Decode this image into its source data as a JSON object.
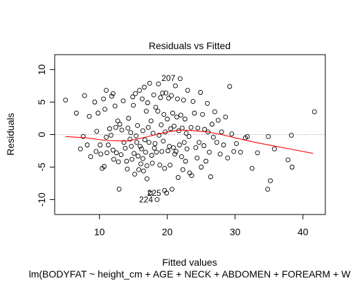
{
  "chart_data": {
    "type": "scatter",
    "title": "Residuals vs Fitted",
    "xlabel": "Fitted values",
    "ylabel": "Residuals",
    "subtitle": "lm(BODYFAT ~ height_cm + AGE + NECK + ABDOMEN + FOREARM + W",
    "xlim": [
      3.4,
      43.3
    ],
    "ylim": [
      -12.3,
      12.3
    ],
    "x_ticks": [
      "10",
      "20",
      "30",
      "40"
    ],
    "y_ticks": [
      "-10",
      "-5",
      "0",
      "5",
      "10"
    ],
    "reference_line": {
      "y": 0,
      "style": "dotted",
      "color": "#bbbbbb"
    },
    "marker": {
      "shape": "open-circle",
      "color": "#000000"
    },
    "smooth_color": "#ff0000",
    "smooth": {
      "x": [
        5,
        8,
        11,
        14,
        16,
        18,
        20,
        22,
        24,
        26,
        28,
        30,
        33,
        36,
        39,
        41.5
      ],
      "y": [
        -0.3,
        -0.5,
        -0.9,
        -1.0,
        -0.6,
        -0.1,
        0.4,
        0.7,
        0.6,
        0.4,
        0.0,
        -0.5,
        -1.2,
        -1.8,
        -2.4,
        -2.9
      ]
    },
    "labeled_points": [
      {
        "label": "207",
        "x": 21.8,
        "y": 8.7
      },
      {
        "label": "225",
        "x": 19.7,
        "y": -9.0
      },
      {
        "label": "224",
        "x": 18.5,
        "y": -10.0
      }
    ],
    "points": [
      [
        5.0,
        5.3
      ],
      [
        6.6,
        3.3
      ],
      [
        7.2,
        -2.2
      ],
      [
        7.6,
        -0.3
      ],
      [
        7.8,
        6.0
      ],
      [
        8.2,
        -1.6
      ],
      [
        8.5,
        2.8
      ],
      [
        8.7,
        -3.4
      ],
      [
        9.3,
        5.0
      ],
      [
        9.5,
        -2.6
      ],
      [
        9.6,
        0.5
      ],
      [
        9.8,
        3.3
      ],
      [
        10.1,
        -1.6
      ],
      [
        10.2,
        -3.0
      ],
      [
        10.4,
        -5.2
      ],
      [
        10.6,
        5.5
      ],
      [
        10.7,
        -4.9
      ],
      [
        10.8,
        3.9
      ],
      [
        11.0,
        6.8
      ],
      [
        11.0,
        -0.4
      ],
      [
        11.1,
        -2.8
      ],
      [
        11.3,
        -1.6
      ],
      [
        11.5,
        0.9
      ],
      [
        11.7,
        -0.1
      ],
      [
        11.8,
        5.9
      ],
      [
        12.0,
        6.3
      ],
      [
        12.0,
        -2.4
      ],
      [
        12.1,
        -3.8
      ],
      [
        12.3,
        4.4
      ],
      [
        12.4,
        1.1
      ],
      [
        12.5,
        -2.8
      ],
      [
        12.7,
        2.1
      ],
      [
        12.8,
        -4.2
      ],
      [
        12.9,
        -8.4
      ],
      [
        13.0,
        1.6
      ],
      [
        13.2,
        -3.1
      ],
      [
        13.3,
        0.7
      ],
      [
        13.5,
        5.2
      ],
      [
        13.6,
        -1.2
      ],
      [
        13.8,
        -2.1
      ],
      [
        14.0,
        -4.1
      ],
      [
        14.1,
        -5.3
      ],
      [
        14.2,
        1.0
      ],
      [
        14.3,
        2.5
      ],
      [
        14.5,
        -0.7
      ],
      [
        14.6,
        0.3
      ],
      [
        14.7,
        -1.8
      ],
      [
        14.8,
        -3.8
      ],
      [
        14.9,
        5.8
      ],
      [
        15.0,
        4.5
      ],
      [
        15.1,
        -2.9
      ],
      [
        15.2,
        -6.1
      ],
      [
        15.3,
        6.3
      ],
      [
        15.4,
        -0.2
      ],
      [
        15.5,
        -1.2
      ],
      [
        15.6,
        1.4
      ],
      [
        15.7,
        -3.3
      ],
      [
        15.8,
        -5.4
      ],
      [
        15.9,
        6.8
      ],
      [
        16.0,
        -1.8
      ],
      [
        16.1,
        -4.5
      ],
      [
        16.2,
        -2.2
      ],
      [
        16.3,
        5.5
      ],
      [
        16.4,
        0.6
      ],
      [
        16.4,
        -3.7
      ],
      [
        16.5,
        -5.6
      ],
      [
        16.6,
        7.3
      ],
      [
        16.7,
        -0.8
      ],
      [
        16.8,
        -2.7
      ],
      [
        16.9,
        3.6
      ],
      [
        17.0,
        -4.8
      ],
      [
        17.0,
        -6.8
      ],
      [
        17.1,
        4.9
      ],
      [
        17.2,
        1.1
      ],
      [
        17.3,
        -1.2
      ],
      [
        17.4,
        7.9
      ],
      [
        17.5,
        -9.0
      ],
      [
        17.6,
        2.1
      ],
      [
        17.7,
        -3.2
      ],
      [
        17.8,
        -4.4
      ],
      [
        17.9,
        0.2
      ],
      [
        18.0,
        6.1
      ],
      [
        18.1,
        -2.1
      ],
      [
        18.2,
        -1.4
      ],
      [
        18.3,
        4.2
      ],
      [
        18.4,
        -2.7
      ],
      [
        18.5,
        -10.0
      ],
      [
        18.6,
        3.6
      ],
      [
        18.7,
        7.8
      ],
      [
        18.8,
        -0.1
      ],
      [
        18.9,
        -4.7
      ],
      [
        19.0,
        5.7
      ],
      [
        19.1,
        1.5
      ],
      [
        19.2,
        -2.6
      ],
      [
        19.3,
        6.4
      ],
      [
        19.4,
        -1.0
      ],
      [
        19.5,
        3.1
      ],
      [
        19.6,
        -5.2
      ],
      [
        19.6,
        -8.6
      ],
      [
        19.7,
        0.4
      ],
      [
        19.8,
        6.4
      ],
      [
        19.9,
        -9.0
      ],
      [
        20.0,
        2.4
      ],
      [
        20.1,
        -2.5
      ],
      [
        20.2,
        5.6
      ],
      [
        20.3,
        -1.8
      ],
      [
        20.4,
        -4.7
      ],
      [
        20.5,
        0.9
      ],
      [
        20.6,
        6.0
      ],
      [
        20.7,
        -8.4
      ],
      [
        20.8,
        3.3
      ],
      [
        20.9,
        -2.0
      ],
      [
        21.0,
        1.3
      ],
      [
        21.1,
        -3.0
      ],
      [
        21.2,
        7.5
      ],
      [
        21.3,
        -2.6
      ],
      [
        21.4,
        2.7
      ],
      [
        21.5,
        5.5
      ],
      [
        21.6,
        -6.6
      ],
      [
        21.7,
        0.6
      ],
      [
        21.8,
        -1.6
      ],
      [
        21.9,
        8.6
      ],
      [
        22.0,
        3.0
      ],
      [
        22.1,
        -3.4
      ],
      [
        22.2,
        1.0
      ],
      [
        22.3,
        -5.4
      ],
      [
        22.4,
        5.3
      ],
      [
        22.5,
        -1.2
      ],
      [
        22.6,
        2.4
      ],
      [
        22.7,
        -4.1
      ],
      [
        22.8,
        0.2
      ],
      [
        22.9,
        -2.2
      ],
      [
        23.0,
        6.8
      ],
      [
        23.2,
        -0.3
      ],
      [
        23.3,
        -5.9
      ],
      [
        23.5,
        1.1
      ],
      [
        23.6,
        -6.3
      ],
      [
        23.8,
        5.1
      ],
      [
        24.0,
        3.3
      ],
      [
        24.2,
        -2.0
      ],
      [
        24.4,
        -3.6
      ],
      [
        24.5,
        1.0
      ],
      [
        24.7,
        -1.2
      ],
      [
        24.9,
        6.5
      ],
      [
        25.0,
        -5.0
      ],
      [
        25.2,
        3.1
      ],
      [
        25.4,
        -1.7
      ],
      [
        25.5,
        0.8
      ],
      [
        25.7,
        -4.1
      ],
      [
        25.9,
        4.8
      ],
      [
        26.0,
        0.4
      ],
      [
        26.2,
        -2.7
      ],
      [
        26.4,
        -6.5
      ],
      [
        26.6,
        1.6
      ],
      [
        26.8,
        -0.4
      ],
      [
        27.0,
        3.5
      ],
      [
        27.3,
        -1.2
      ],
      [
        27.5,
        2.2
      ],
      [
        27.8,
        -3.0
      ],
      [
        28.0,
        0.4
      ],
      [
        28.3,
        -1.6
      ],
      [
        28.6,
        2.7
      ],
      [
        28.9,
        -3.6
      ],
      [
        29.2,
        7.4
      ],
      [
        29.5,
        0.1
      ],
      [
        29.8,
        -2.6
      ],
      [
        30.2,
        -1.4
      ],
      [
        30.8,
        -2.7
      ],
      [
        31.5,
        -0.5
      ],
      [
        31.8,
        -0.3
      ],
      [
        32.5,
        -5.2
      ],
      [
        33.3,
        -2.8
      ],
      [
        34.8,
        -8.4
      ],
      [
        35.2,
        -7.1
      ],
      [
        35.8,
        -2.2
      ],
      [
        34.9,
        -0.3
      ],
      [
        37.8,
        -3.9
      ],
      [
        38.4,
        -5.0
      ],
      [
        38.3,
        -0.1
      ],
      [
        41.7,
        3.5
      ]
    ]
  }
}
